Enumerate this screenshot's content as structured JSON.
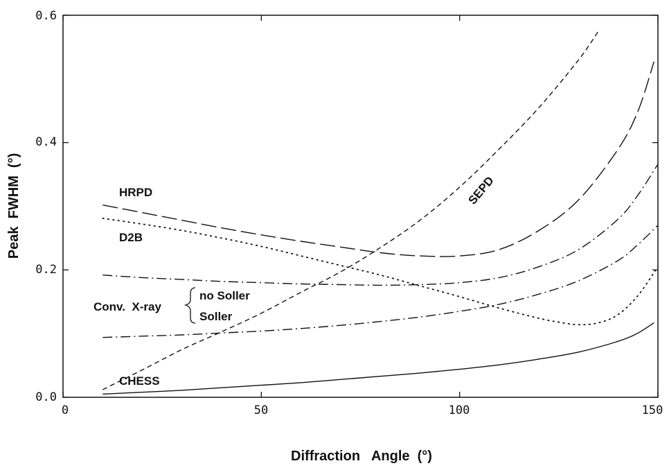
{
  "chart_data": {
    "type": "line",
    "xlabel": "Diffraction   Angle  (°)",
    "ylabel": "Peak  FWHM  (°)",
    "xlim": [
      0,
      150
    ],
    "ylim": [
      0,
      0.6
    ],
    "x_ticks": [
      "0",
      "50",
      "100",
      "150"
    ],
    "y_ticks": [
      "0.0",
      "0.2",
      "0.4",
      "0.6"
    ],
    "grid": false,
    "series": [
      {
        "name": "SEPD",
        "style": "dashed",
        "x": [
          10,
          20,
          30,
          40,
          50,
          60,
          70,
          80,
          90,
          100,
          110,
          120,
          130,
          135
        ],
        "y": [
          0.012,
          0.043,
          0.075,
          0.103,
          0.132,
          0.165,
          0.197,
          0.235,
          0.278,
          0.33,
          0.39,
          0.455,
          0.53,
          0.575
        ]
      },
      {
        "name": "HRPD",
        "style": "long-dash",
        "x": [
          10,
          20,
          30,
          40,
          50,
          60,
          70,
          80,
          90,
          100,
          110,
          120,
          130,
          140,
          145,
          149
        ],
        "y": [
          0.302,
          0.29,
          0.278,
          0.266,
          0.255,
          0.245,
          0.236,
          0.227,
          0.222,
          0.222,
          0.232,
          0.262,
          0.31,
          0.39,
          0.45,
          0.527
        ]
      },
      {
        "name": "D2B",
        "style": "dotted",
        "x": [
          10,
          20,
          30,
          40,
          50,
          60,
          70,
          80,
          90,
          100,
          110,
          120,
          125,
          130,
          135,
          140,
          145,
          150
        ],
        "y": [
          0.281,
          0.272,
          0.262,
          0.25,
          0.237,
          0.222,
          0.207,
          0.192,
          0.175,
          0.158,
          0.14,
          0.124,
          0.118,
          0.114,
          0.117,
          0.13,
          0.16,
          0.205
        ]
      },
      {
        "name": "Conv. X-ray no Soller",
        "style": "dash-dot",
        "x": [
          10,
          20,
          30,
          40,
          50,
          60,
          70,
          80,
          90,
          100,
          110,
          120,
          130,
          140,
          145,
          150
        ],
        "y": [
          0.192,
          0.188,
          0.185,
          0.182,
          0.18,
          0.178,
          0.177,
          0.176,
          0.177,
          0.18,
          0.188,
          0.205,
          0.232,
          0.28,
          0.318,
          0.366
        ]
      },
      {
        "name": "Conv. X-ray Soller",
        "style": "dash-dot",
        "x": [
          10,
          20,
          30,
          40,
          50,
          60,
          70,
          80,
          90,
          100,
          110,
          120,
          130,
          140,
          145,
          150
        ],
        "y": [
          0.094,
          0.096,
          0.098,
          0.101,
          0.104,
          0.108,
          0.113,
          0.119,
          0.126,
          0.135,
          0.146,
          0.162,
          0.183,
          0.215,
          0.24,
          0.27
        ]
      },
      {
        "name": "CHESS",
        "style": "solid",
        "x": [
          10,
          20,
          30,
          40,
          50,
          60,
          70,
          80,
          90,
          100,
          110,
          120,
          130,
          140,
          145,
          149
        ],
        "y": [
          0.005,
          0.008,
          0.011,
          0.015,
          0.019,
          0.023,
          0.028,
          0.033,
          0.038,
          0.044,
          0.051,
          0.06,
          0.071,
          0.088,
          0.101,
          0.117
        ]
      }
    ],
    "annotations": {
      "hrpd": "HRPD",
      "d2b": "D2B",
      "sepd": "SEPD",
      "conv": "Conv.  X-ray",
      "no_soller": "no Soller",
      "soller": "Soller",
      "chess": "CHESS"
    }
  }
}
